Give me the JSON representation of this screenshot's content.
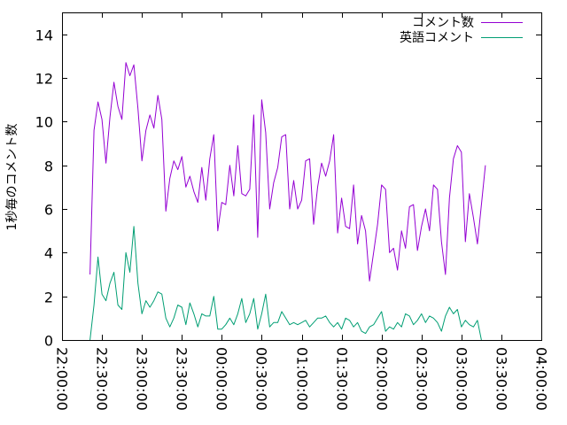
{
  "chart_data": {
    "type": "line",
    "title": "",
    "xlabel": "",
    "ylabel": "1秒毎のコメント数",
    "x_ticks": [
      "22:00:00",
      "22:30:00",
      "23:00:00",
      "23:30:00",
      "00:00:00",
      "00:30:00",
      "01:00:00",
      "01:30:00",
      "02:00:00",
      "02:30:00",
      "03:00:00",
      "03:30:00",
      "04:00:00"
    ],
    "y_ticks": [
      "0",
      "2",
      "4",
      "6",
      "8",
      "10",
      "12",
      "14"
    ],
    "xlim": [
      "22:00:00",
      "04:00:00"
    ],
    "ylim": [
      0,
      15
    ],
    "x_step_minutes": 3,
    "x_start": "22:21:00",
    "legend_position": "top-right",
    "grid": false,
    "series": [
      {
        "name": "コメント数",
        "color": "#9400d3",
        "values": [
          3.0,
          9.6,
          10.9,
          10.1,
          8.1,
          10.2,
          11.8,
          10.7,
          10.1,
          12.7,
          12.1,
          12.6,
          10.6,
          8.2,
          9.6,
          10.3,
          9.7,
          11.2,
          10.1,
          5.9,
          7.4,
          8.2,
          7.8,
          8.4,
          7.0,
          7.5,
          6.8,
          6.3,
          7.9,
          6.4,
          8.3,
          9.4,
          5.0,
          6.3,
          6.2,
          8.0,
          6.6,
          8.9,
          6.7,
          6.6,
          6.9,
          10.3,
          4.7,
          11.0,
          9.5,
          6.0,
          7.2,
          7.9,
          9.3,
          9.4,
          6.0,
          7.3,
          6.0,
          6.4,
          8.2,
          8.3,
          5.3,
          7.0,
          8.1,
          7.5,
          8.2,
          9.4,
          4.9,
          6.5,
          5.2,
          5.1,
          7.1,
          4.4,
          5.7,
          5.0,
          2.7,
          4.0,
          5.3,
          7.1,
          6.9,
          4.0,
          4.2,
          3.2,
          5.0,
          4.2,
          6.1,
          6.2,
          4.1,
          5.2,
          6.0,
          5.0,
          7.1,
          6.9,
          4.5,
          3.0,
          6.5,
          8.3,
          8.9,
          8.6,
          4.5,
          6.7,
          5.6,
          4.4,
          6.2,
          8.0
        ]
      },
      {
        "name": "英語コメント",
        "color": "#009e73",
        "values": [
          0.0,
          1.6,
          3.8,
          2.1,
          1.8,
          2.6,
          3.1,
          1.6,
          1.4,
          4.0,
          3.1,
          5.2,
          2.6,
          1.2,
          1.8,
          1.5,
          1.8,
          2.2,
          2.1,
          1.0,
          0.6,
          1.0,
          1.6,
          1.5,
          0.7,
          1.7,
          1.2,
          0.6,
          1.2,
          1.1,
          1.1,
          2.0,
          0.5,
          0.5,
          0.7,
          1.0,
          0.7,
          1.2,
          1.9,
          0.8,
          1.2,
          1.9,
          0.5,
          1.2,
          2.1,
          0.6,
          0.8,
          0.8,
          1.3,
          1.0,
          0.7,
          0.8,
          0.7,
          0.8,
          0.9,
          0.6,
          0.8,
          1.0,
          1.0,
          1.1,
          0.8,
          0.6,
          0.8,
          0.5,
          1.0,
          0.9,
          0.6,
          0.8,
          0.4,
          0.3,
          0.6,
          0.7,
          1.0,
          1.3,
          0.4,
          0.6,
          0.5,
          0.8,
          0.6,
          1.2,
          1.1,
          0.7,
          0.9,
          1.2,
          0.8,
          1.1,
          1.0,
          0.8,
          0.4,
          1.1,
          1.5,
          1.2,
          1.4,
          0.6,
          0.9,
          0.7,
          0.6,
          0.9,
          0.0
        ]
      }
    ]
  }
}
